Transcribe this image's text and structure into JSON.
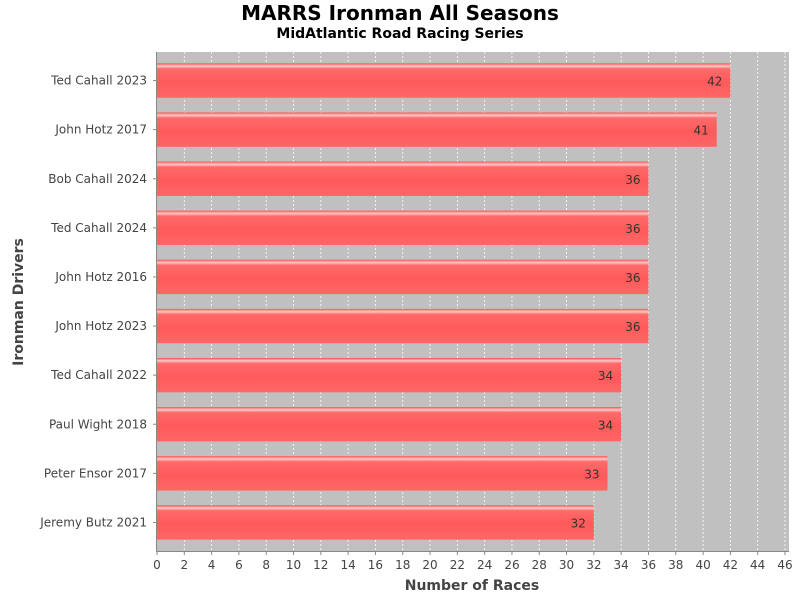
{
  "chart_data": {
    "type": "bar",
    "orientation": "horizontal",
    "title": "MARRS Ironman All Seasons",
    "subtitle": "MidAtlantic Road Racing Series",
    "xlabel": "Number of Races",
    "ylabel": "Ironman Drivers",
    "categories": [
      "Ted Cahall 2023",
      "John Hotz 2017",
      "Bob Cahall 2024",
      "Ted Cahall 2024",
      "John Hotz 2016",
      "John Hotz 2023",
      "Ted Cahall 2022",
      "Paul Wight 2018",
      "Peter Ensor 2017",
      "Jeremy Butz 2021"
    ],
    "values": [
      42,
      41,
      36,
      36,
      36,
      36,
      34,
      34,
      33,
      32
    ],
    "xlim": [
      0,
      46
    ],
    "xticks": [
      0,
      2,
      4,
      6,
      8,
      10,
      12,
      14,
      16,
      18,
      20,
      22,
      24,
      26,
      28,
      30,
      32,
      34,
      36,
      38,
      40,
      42,
      44,
      46
    ],
    "grid": true,
    "data_labels": true,
    "colors": {
      "bar": "#ff5555",
      "plot_background": "#c0c0c0",
      "gridline": "#ffffff"
    }
  }
}
